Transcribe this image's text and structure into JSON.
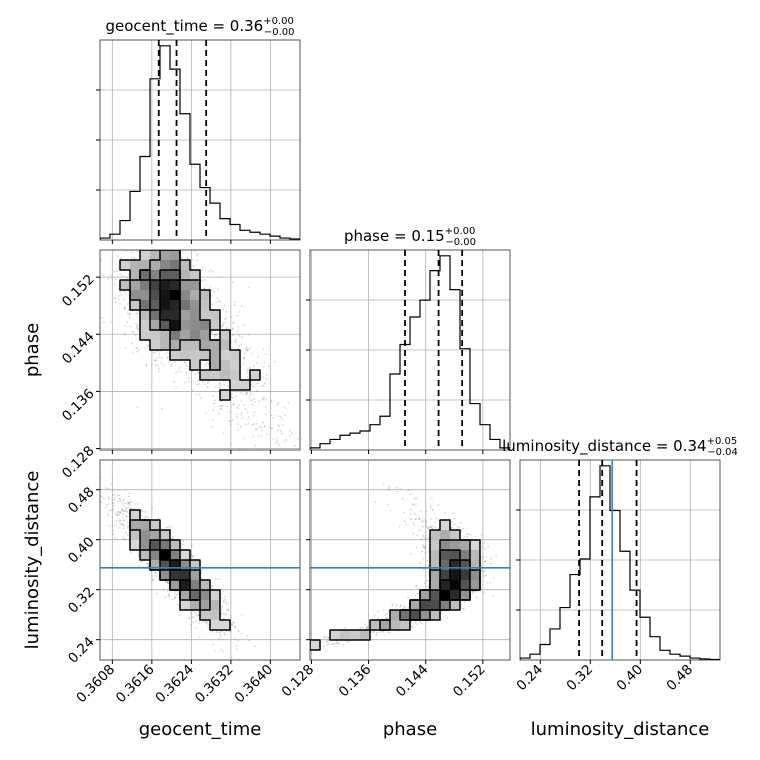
{
  "chart_data": {
    "type": "corner",
    "colors": {
      "truth": "#3f7fb0",
      "line": "#000000",
      "grid": "#b0b0b0"
    },
    "parameters": [
      {
        "name": "geocent_time",
        "label": "geocent_time",
        "title_base": "geocent_time = 0.36",
        "title_plus": "+0.00",
        "title_minus": "−0.00",
        "range": [
          0.36055,
          0.3646
        ],
        "ticks": [
          0.3608,
          0.3616,
          0.3624,
          0.3632,
          0.364
        ],
        "tick_labels": [
          "0.3608",
          "0.3616",
          "0.3624",
          "0.3632",
          "0.3640"
        ],
        "quantiles": [
          0.36174,
          0.3621,
          0.3627
        ],
        "truth": null,
        "hist": [
          1,
          3,
          10,
          25,
          43,
          83,
          100,
          88,
          65,
          39,
          27,
          19,
          11,
          8,
          5,
          4,
          3,
          2,
          1,
          0.5
        ]
      },
      {
        "name": "phase",
        "label": "phase",
        "title_base": "phase = 0.15",
        "title_plus": "+0.00",
        "title_minus": "−0.00",
        "range": [
          0.1278,
          0.1558
        ],
        "ticks": [
          0.128,
          0.136,
          0.144,
          0.152
        ],
        "tick_labels": [
          "0.128",
          "0.136",
          "0.144",
          "0.152"
        ],
        "quantiles": [
          0.1411,
          0.1458,
          0.1491
        ],
        "truth": null,
        "hist": [
          1,
          3,
          5,
          7,
          8,
          9,
          12,
          16,
          36,
          50,
          63,
          71,
          85,
          92,
          76,
          48,
          22,
          12,
          5,
          1
        ]
      },
      {
        "name": "luminosity_distance",
        "label": "luminosity_distance",
        "title_base": "luminosity_distance = 0.34",
        "title_plus": "+0.05",
        "title_minus": "−0.04",
        "range": [
          0.2075,
          0.5275
        ],
        "ticks": [
          0.24,
          0.32,
          0.4,
          0.48
        ],
        "tick_labels": [
          "0.24",
          "0.32",
          "0.40",
          "0.48"
        ],
        "quantiles": [
          0.302,
          0.339,
          0.394
        ],
        "truth": 0.355,
        "hist": [
          1,
          3,
          8,
          16,
          27,
          44,
          52,
          84,
          100,
          77,
          56,
          36,
          22,
          12,
          5,
          3,
          2,
          1,
          0.5,
          0.3
        ]
      }
    ],
    "truth_values": {
      "geocent_time": null,
      "phase": null,
      "luminosity_distance": 0.355
    },
    "density": {
      "phase_vs_geocent_time": {
        "x_param": "geocent_time",
        "y_param": "phase",
        "mean": [
          0.36205,
          0.1487
        ],
        "sd": [
          0.00048,
          0.0044
        ],
        "corr": -0.35,
        "skew_tail": [
          0.0006,
          -0.008
        ]
      },
      "luminosity_distance_vs_geocent_time": {
        "x_param": "geocent_time",
        "y_param": "luminosity_distance",
        "mean": [
          0.36205,
          0.355
        ],
        "sd": [
          0.0005,
          0.045
        ],
        "corr": -0.9
      },
      "luminosity_distance_vs_phase": {
        "x_param": "phase",
        "y_param": "luminosity_distance",
        "mean": [
          0.148,
          0.33
        ],
        "sd": [
          0.004,
          0.048
        ],
        "corr": 0.55,
        "shape": "crescent"
      }
    },
    "grid": true,
    "legend": "none",
    "xlabel_bottom": [
      "geocent_time",
      "phase",
      "luminosity_distance"
    ],
    "ylabel_left": [
      "phase",
      "luminosity_distance"
    ]
  }
}
